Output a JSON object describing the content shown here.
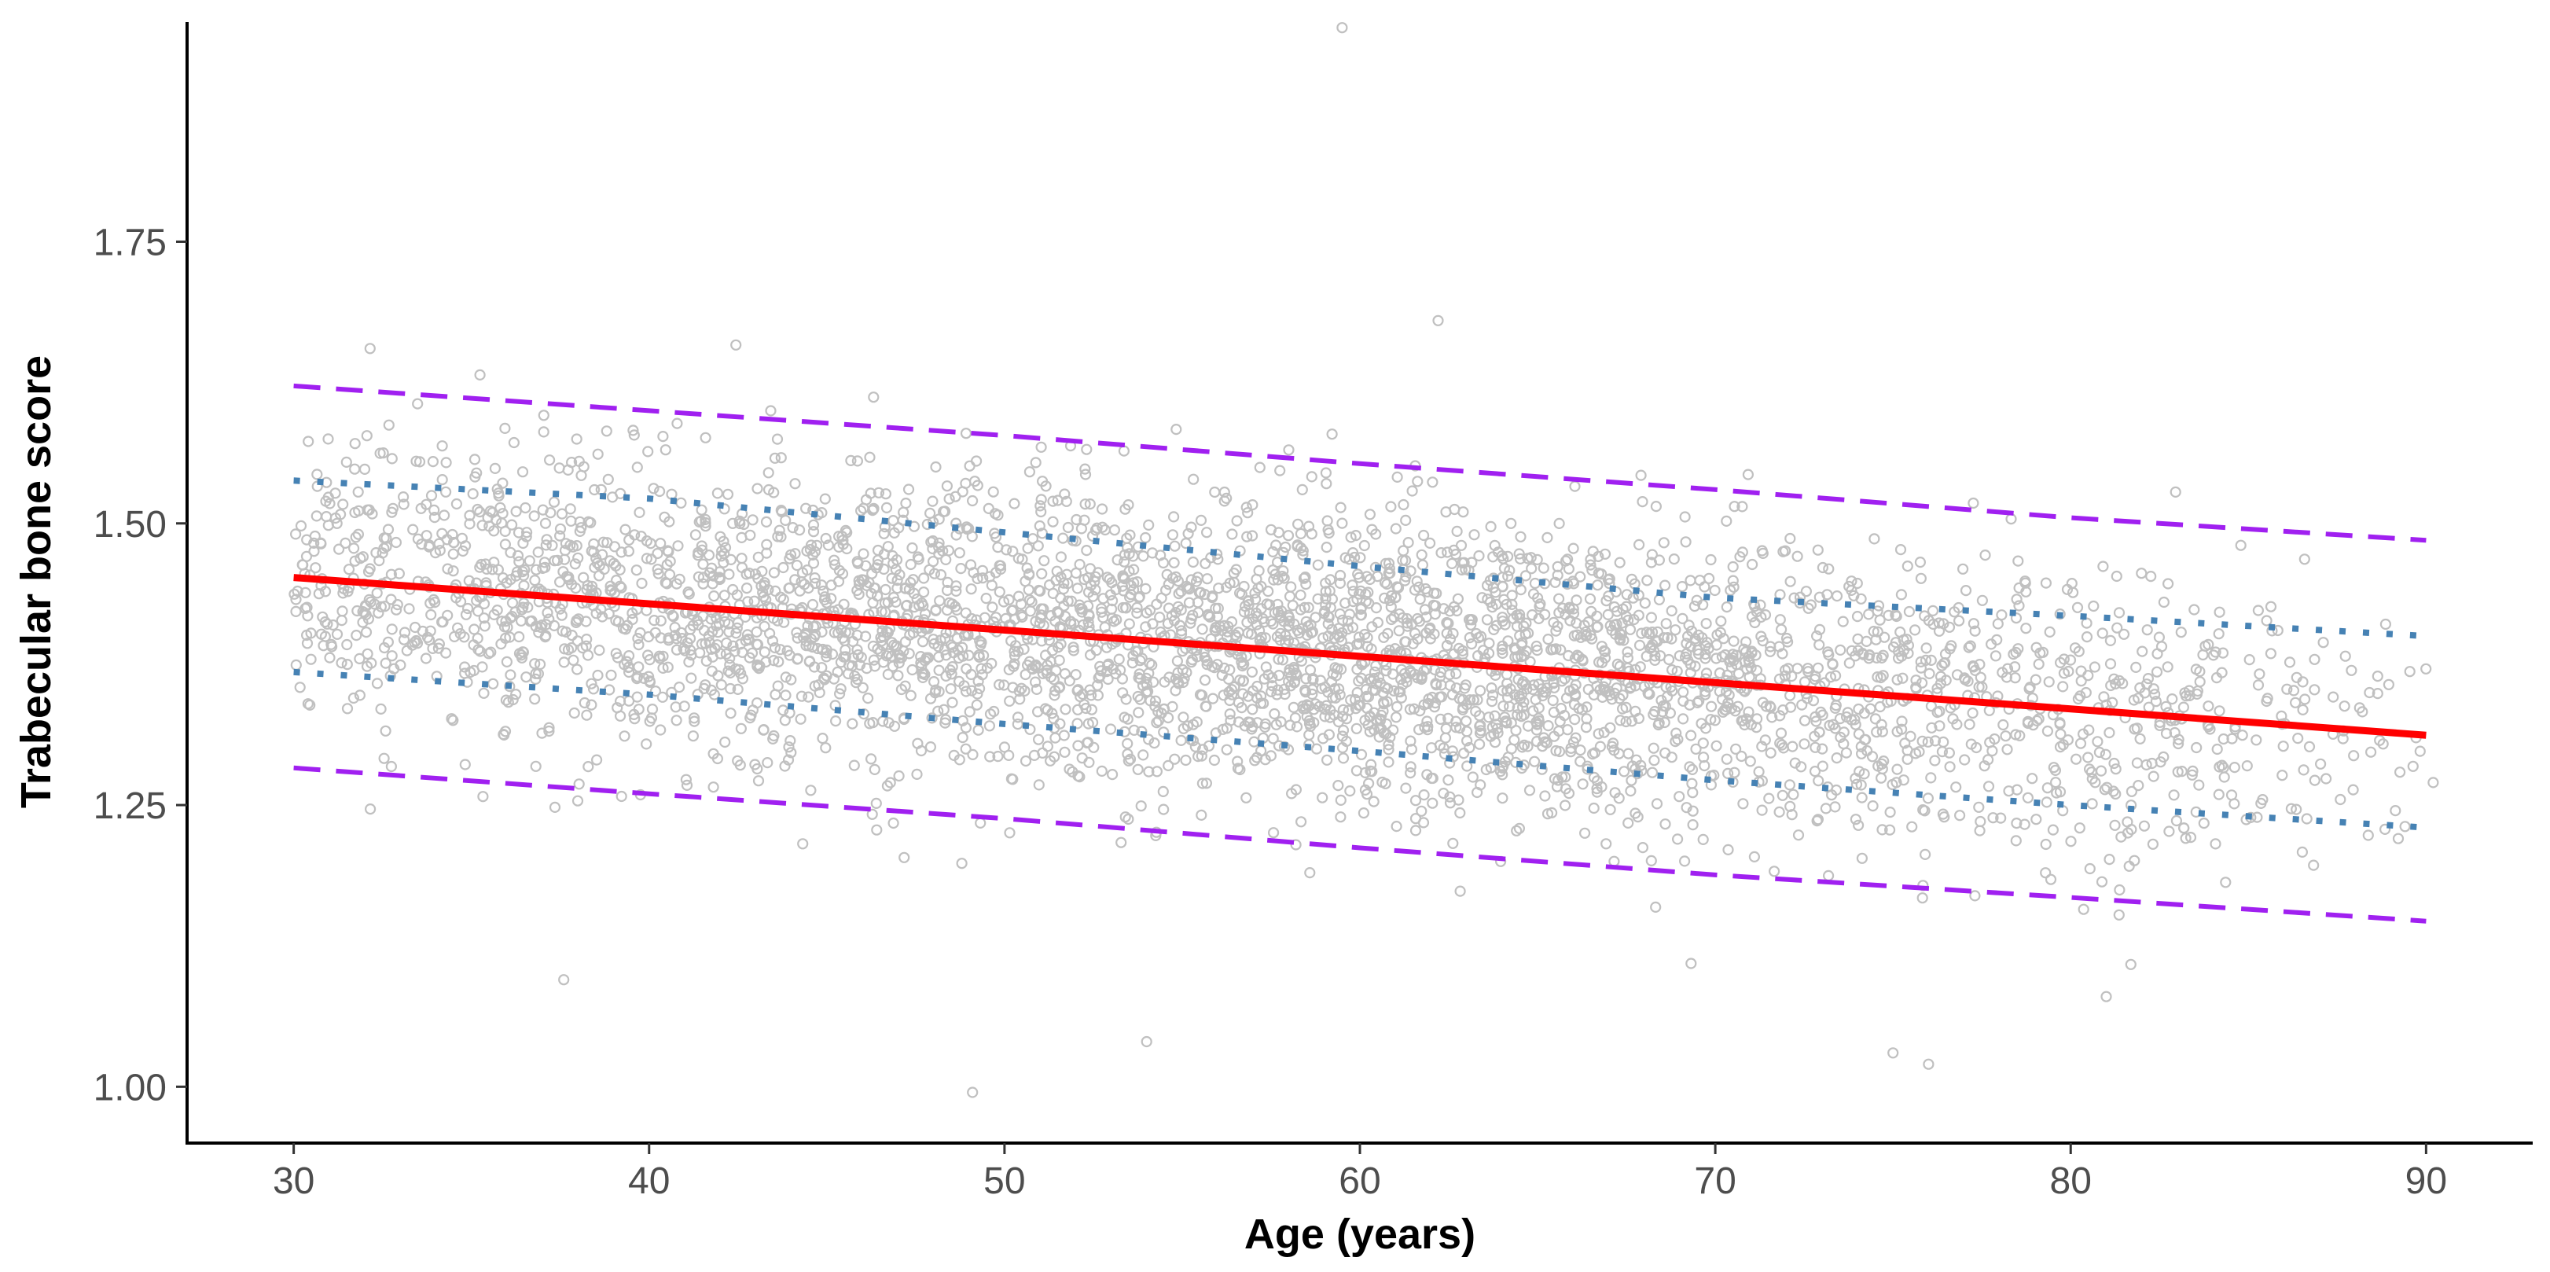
{
  "chart_data": {
    "type": "scatter",
    "title": "",
    "xlabel": "Age (years)",
    "ylabel": "Trabecular bone score",
    "xlim": [
      27,
      93
    ],
    "ylim": [
      0.95,
      1.945
    ],
    "x_ticks": [
      30,
      40,
      50,
      60,
      70,
      80,
      90
    ],
    "y_ticks": [
      1.0,
      1.25,
      1.5,
      1.75
    ],
    "x_tick_labels": [
      "30",
      "40",
      "50",
      "60",
      "70",
      "80",
      "90"
    ],
    "y_tick_labels": [
      "1.00",
      "1.25",
      "1.50",
      "1.75"
    ],
    "grid": false,
    "legend": "none",
    "scatter": {
      "description": "Individual observations (approx. 4,000), open grey circles",
      "color": "#c0c0c0",
      "approx_count": 4000,
      "notable_points": [
        {
          "x": 59.5,
          "y": 1.94
        },
        {
          "x": 62.2,
          "y": 1.68
        },
        {
          "x": 54.0,
          "y": 1.04
        },
        {
          "x": 49.1,
          "y": 0.995
        },
        {
          "x": 75.0,
          "y": 1.03
        },
        {
          "x": 76.0,
          "y": 1.02
        },
        {
          "x": 81.0,
          "y": 1.08
        },
        {
          "x": 90.2,
          "y": 1.27
        },
        {
          "x": 37.6,
          "y": 1.095
        }
      ]
    },
    "series": [
      {
        "style": "solid",
        "color": "#ff0000",
        "x": [
          30,
          90
        ],
        "y": [
          1.452,
          1.312
        ]
      },
      {
        "style": "dotted",
        "color": "#4682b4",
        "x": [
          30,
          40,
          50,
          60,
          70,
          80,
          90
        ],
        "y": [
          1.538,
          1.522,
          1.492,
          1.462,
          1.434,
          1.418,
          1.4
        ]
      },
      {
        "style": "dotted",
        "color": "#4682b4",
        "x": [
          30,
          40,
          50,
          60,
          70,
          80,
          90
        ],
        "y": [
          1.368,
          1.348,
          1.322,
          1.298,
          1.272,
          1.25,
          1.23
        ]
      },
      {
        "style": "dashed",
        "color": "#a020f0",
        "x": [
          30,
          40,
          50,
          60,
          70,
          80,
          90
        ],
        "y": [
          1.622,
          1.6,
          1.578,
          1.553,
          1.53,
          1.505,
          1.485
        ]
      },
      {
        "style": "dashed",
        "color": "#a020f0",
        "x": [
          30,
          40,
          50,
          60,
          70,
          80,
          90
        ],
        "y": [
          1.283,
          1.26,
          1.238,
          1.212,
          1.188,
          1.168,
          1.147
        ]
      }
    ]
  }
}
